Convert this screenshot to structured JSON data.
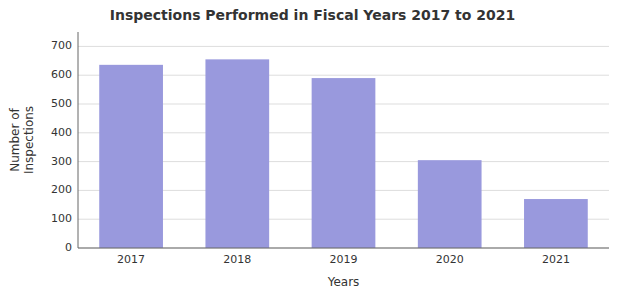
{
  "chart_data": {
    "type": "bar",
    "title": "Inspections Performed in Fiscal Years 2017 to 2021",
    "categories": [
      "2017",
      "2018",
      "2019",
      "2020",
      "2021"
    ],
    "values": [
      636,
      655,
      590,
      305,
      170
    ],
    "color": "#9999DD",
    "xlabel": "Years",
    "ylabel": "Number of\nInspections",
    "ylim": [
      0,
      750
    ],
    "yticks": [
      0,
      100,
      200,
      300,
      400,
      500,
      600,
      700
    ],
    "grid": true
  }
}
